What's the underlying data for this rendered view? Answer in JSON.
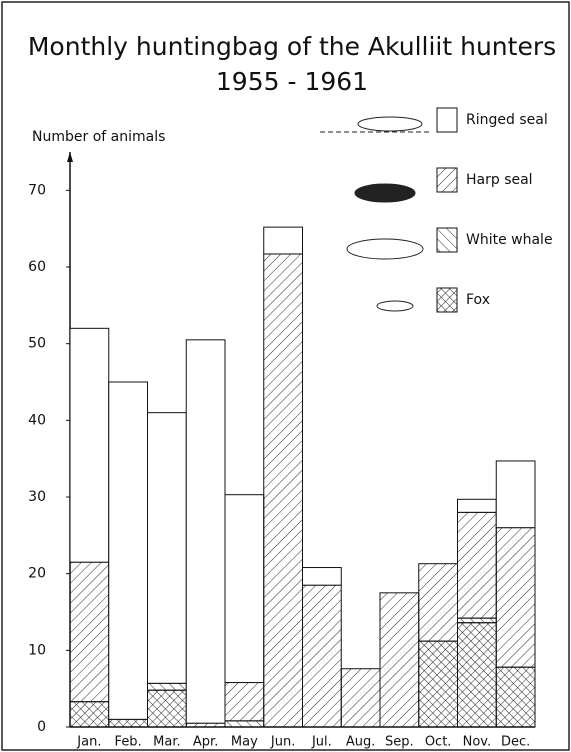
{
  "chart_data": {
    "type": "stacked_bar",
    "title": "Monthly huntingbag of the Akulliit hunters",
    "subtitle": "1955 - 1961",
    "y_label": "Number of animals",
    "categories": [
      "Jan.",
      "Feb.",
      "Mar.",
      "Apr.",
      "May",
      "Jun.",
      "Jul.",
      "Aug.",
      "Sep.",
      "Oct.",
      "Nov.",
      "Dec."
    ],
    "series": [
      {
        "name": "Fox",
        "color": "#111111",
        "hatch": "cross",
        "values": [
          3.3,
          1,
          4.8,
          0,
          0,
          0,
          0,
          0,
          0,
          11.2,
          13.6,
          7.8
        ]
      },
      {
        "name": "White whale",
        "color": "#111111",
        "hatch": "forward",
        "values": [
          0,
          0,
          0.9,
          0,
          0.8,
          0,
          0,
          0,
          0,
          0,
          0.6,
          0
        ]
      },
      {
        "name": "Harp seal",
        "color": "#111111",
        "hatch": "back",
        "values": [
          18.2,
          0,
          0,
          0.5,
          5,
          61.7,
          18.5,
          7.6,
          17.5,
          10.1,
          13.8,
          18.2
        ]
      },
      {
        "name": "Ringed seal",
        "color": "#111111",
        "hatch": "none",
        "values": [
          30.5,
          44,
          35.3,
          50,
          24.5,
          3.5,
          2.3,
          0,
          0,
          0,
          1.7,
          8.7
        ]
      }
    ],
    "ylim": [
      0,
      75
    ],
    "yticks": [
      0,
      10,
      20,
      30,
      40,
      50,
      60,
      70
    ]
  }
}
